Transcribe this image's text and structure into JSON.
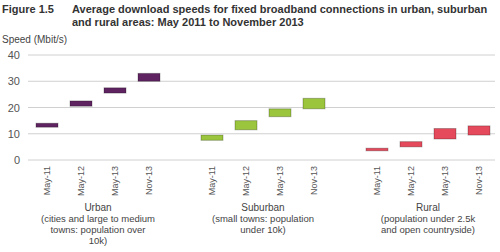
{
  "chart_data": {
    "type": "bar",
    "figure_label": "Figure 1.5",
    "title": "Average download speeds for fixed broadband connections in urban, suburban and rural areas: May 2011 to November 2013",
    "y_label": "Speed (Mbit/s)",
    "ylim": [
      0,
      40
    ],
    "yticks": [
      0,
      10,
      20,
      30,
      40
    ],
    "grid": true,
    "groups": [
      {
        "name": "Urban",
        "description": [
          "(cities and large to medium",
          "towns: population over",
          "10k)"
        ],
        "color": "#5e2360",
        "categories": [
          "May-11",
          "May-12",
          "May-13",
          "Nov-13"
        ],
        "low": [
          12.5,
          20.5,
          25.5,
          30
        ],
        "high": [
          14,
          22.5,
          27.5,
          33
        ]
      },
      {
        "name": "Suburban",
        "description": [
          "(small towns: population",
          "under 10k)"
        ],
        "color": "#9ac53c",
        "categories": [
          "May-11",
          "May-12",
          "May-13",
          "Nov-13"
        ],
        "low": [
          7.5,
          11.5,
          16.5,
          19.5
        ],
        "high": [
          9.5,
          15,
          19.5,
          23.5
        ]
      },
      {
        "name": "Rural",
        "description": [
          "(population under 2.5k",
          "and open countryside)"
        ],
        "color": "#e54a5c",
        "categories": [
          "May-11",
          "May-12",
          "May-13",
          "Nov-13"
        ],
        "low": [
          3.5,
          5,
          8,
          9.5
        ],
        "high": [
          4.5,
          7,
          12,
          13
        ]
      }
    ]
  }
}
